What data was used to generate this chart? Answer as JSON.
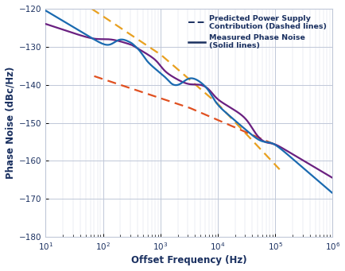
{
  "xlabel": "Offset Frequency (Hz)",
  "ylabel": "Phase Noise (dBc/Hz)",
  "xlim": [
    10,
    1000000
  ],
  "ylim": [
    -180,
    -120
  ],
  "yticks": [
    -180,
    -170,
    -160,
    -150,
    -140,
    -130,
    -120
  ],
  "background_color": "#ffffff",
  "grid_major_color": "#c0c8d8",
  "grid_minor_color": "#d8dde8",
  "line_blue_color": "#1a6ab0",
  "line_purple_color": "#6a2080",
  "dash_orange_color": "#e8a020",
  "dash_red_color": "#e05020",
  "legend_dark_color": "#1a3060",
  "legend_entry1": "Predicted Power Supply\nContribution (Dashed lines)",
  "legend_entry2": "Measured Phase Noise\n(Solid lines)"
}
